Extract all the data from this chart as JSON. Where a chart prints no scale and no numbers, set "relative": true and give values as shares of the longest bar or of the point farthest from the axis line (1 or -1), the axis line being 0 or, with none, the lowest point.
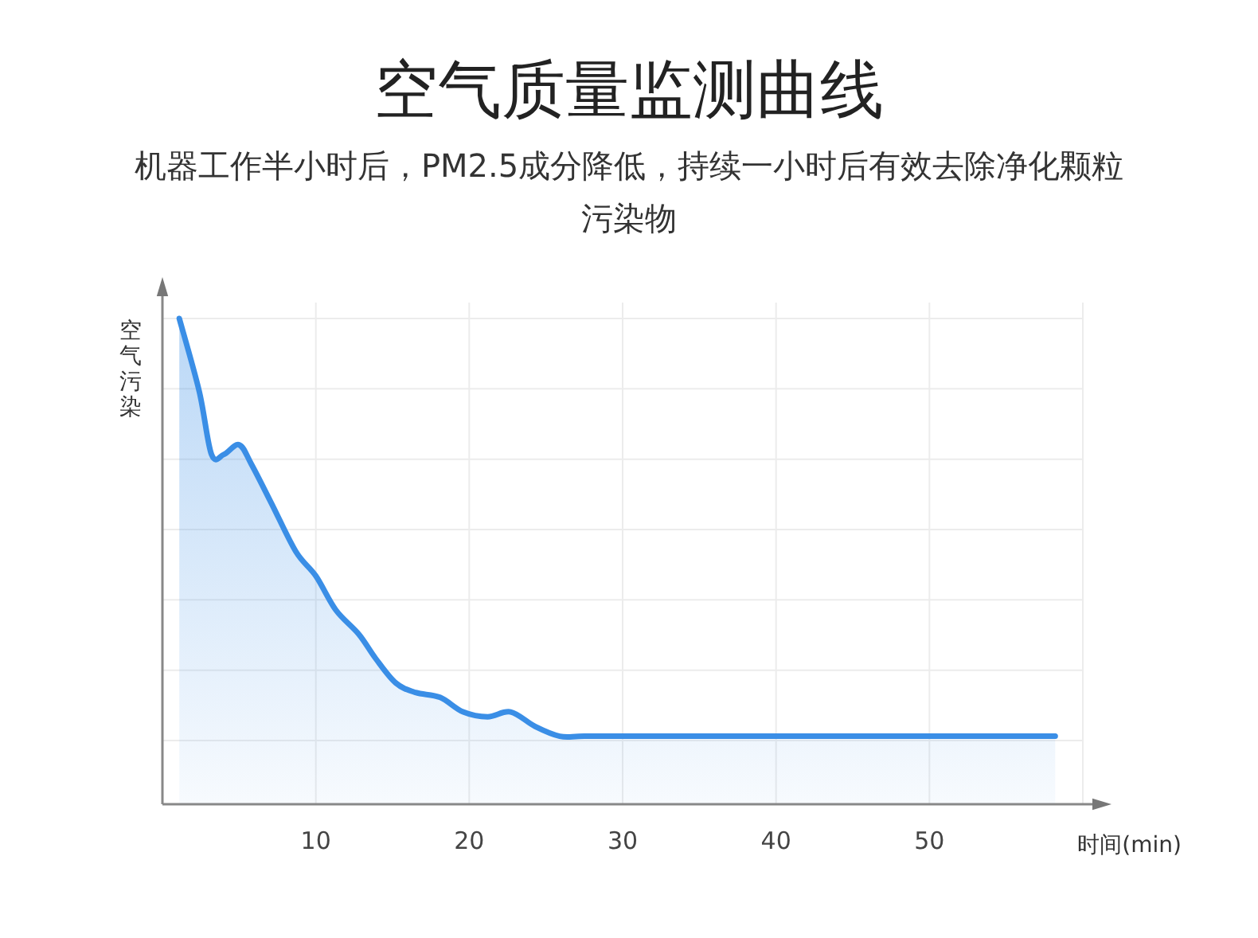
{
  "chart_data": {
    "type": "area",
    "title": "空气质量监测曲线",
    "subtitle": "机器工作半小时后，PM2.5成分降低，持续一小时后有效去除净化颗粒污染物",
    "xlabel": "时间(min)",
    "ylabel": "空气污染",
    "relative": true,
    "xlim": [
      0,
      60
    ],
    "xticks": [
      10,
      20,
      30,
      40,
      50
    ],
    "grid": true,
    "series": [
      {
        "color": "#3a8ee6",
        "x": [
          1.1,
          2.4,
          3.2,
          4.0,
          5.0,
          5.8,
          7.1,
          8.7,
          10.0,
          11.3,
          12.8,
          13.9,
          15.2,
          16.5,
          18.1,
          19.6,
          21.2,
          22.7,
          24.3,
          25.9,
          27.5,
          31.1,
          41.5,
          58.2
        ],
        "values": [
          1.0,
          0.85,
          0.72,
          0.72,
          0.74,
          0.7,
          0.62,
          0.52,
          0.47,
          0.4,
          0.35,
          0.3,
          0.25,
          0.23,
          0.22,
          0.19,
          0.18,
          0.19,
          0.16,
          0.14,
          0.14,
          0.14,
          0.14,
          0.14
        ]
      }
    ]
  }
}
